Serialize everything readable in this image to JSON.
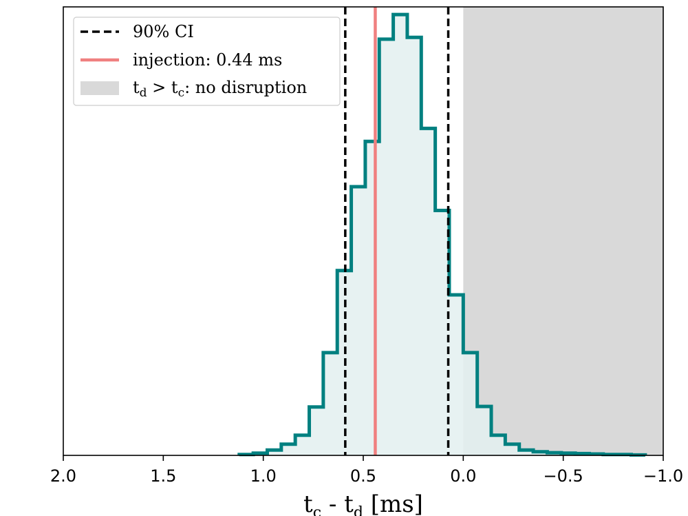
{
  "chart_data": {
    "type": "histogram",
    "xlabel": "t_c - t_d [ms]",
    "xlabel_parts": {
      "t1": "t",
      "sub1": "c",
      "mid": " - t",
      "sub2": "d",
      "unit": " [ms]"
    },
    "xlim": [
      2.0,
      -1.0
    ],
    "ylim": [
      0,
      1.0
    ],
    "xticks": [
      {
        "value": 2.0,
        "label": "2.0"
      },
      {
        "value": 1.5,
        "label": "1.5"
      },
      {
        "value": 1.0,
        "label": "1.0"
      },
      {
        "value": 0.5,
        "label": "0.5"
      },
      {
        "value": 0.0,
        "label": "0.0"
      },
      {
        "value": -0.5,
        "label": "−0.5"
      },
      {
        "value": -1.0,
        "label": "−1.0"
      }
    ],
    "histogram": {
      "color": "#008080",
      "fill": "#e3f0f0",
      "bin_edges": [
        1.12,
        1.05,
        0.98,
        0.91,
        0.84,
        0.77,
        0.7,
        0.63,
        0.56,
        0.49,
        0.42,
        0.35,
        0.28,
        0.21,
        0.14,
        0.07,
        0.0,
        -0.07,
        -0.14,
        -0.21,
        -0.28,
        -0.35,
        -0.42,
        -0.49,
        -0.56,
        -0.63,
        -0.7,
        -0.77,
        -0.84,
        -0.91
      ],
      "counts": [
        0.002,
        0.005,
        0.012,
        0.025,
        0.045,
        0.108,
        0.229,
        0.412,
        0.599,
        0.7,
        0.928,
        0.983,
        0.932,
        0.729,
        0.546,
        0.358,
        0.229,
        0.109,
        0.045,
        0.025,
        0.012,
        0.008,
        0.006,
        0.005,
        0.004,
        0.003,
        0.002,
        0.002,
        0.001
      ]
    },
    "ci_lines": {
      "values": [
        0.59,
        0.075
      ],
      "color": "#000000",
      "label": "90% CI"
    },
    "injection": {
      "value": 0.44,
      "color": "#f08080",
      "label": "injection: 0.44 ms"
    },
    "no_disruption": {
      "from": 0.0,
      "to": -1.0,
      "color": "#d9d9d9",
      "label_parts": {
        "t1": "t",
        "sub1": "d",
        "mid": " > t",
        "sub2": "c",
        "rest": ": no disruption"
      }
    },
    "legend_position": "upper-left"
  }
}
